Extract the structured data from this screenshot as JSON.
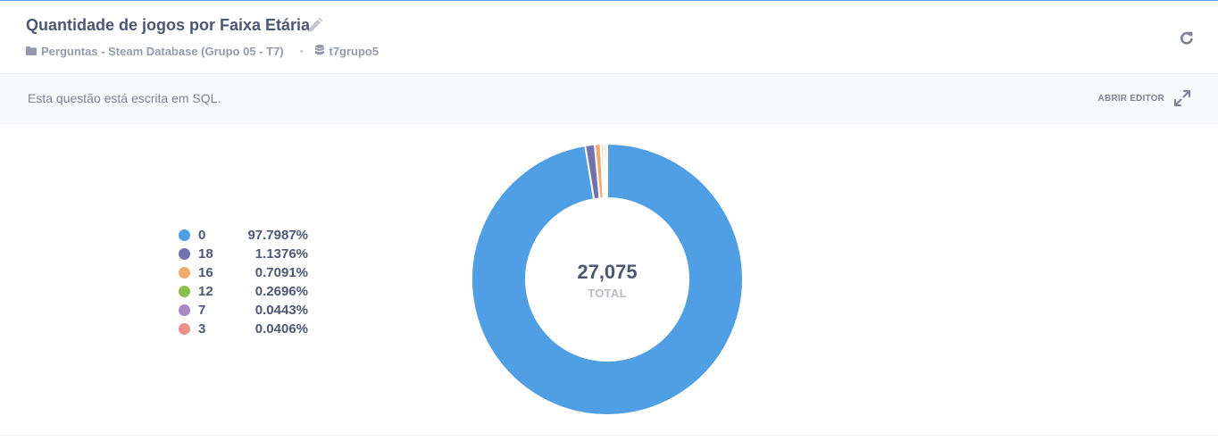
{
  "header": {
    "title": "Quantidade de jogos por Faixa Etária",
    "collection": "Perguntas - Steam Database (Grupo 05 - T7)",
    "separator": "•",
    "database": "t7grupo5"
  },
  "sql_bar": {
    "text": "Esta questão está escrita em SQL.",
    "open_editor_label": "ABRIR EDITOR"
  },
  "icons": {
    "edit": "pencil-icon",
    "collection": "folder-icon",
    "database": "database-icon",
    "refresh": "refresh-icon",
    "expand": "expand-icon"
  },
  "chart_data": {
    "type": "pie",
    "categories": [
      "0",
      "18",
      "16",
      "12",
      "7",
      "3"
    ],
    "values": [
      97.7987,
      1.1376,
      0.7091,
      0.2696,
      0.0443,
      0.0406
    ],
    "percent_labels": [
      "97.7987%",
      "1.1376%",
      "0.7091%",
      "0.2696%",
      "0.0443%",
      "0.0406%"
    ],
    "colors": [
      "#509ee3",
      "#7172ad",
      "#f2a86f",
      "#88bf4d",
      "#a989c5",
      "#ef8c8c"
    ],
    "total_value": "27,075",
    "total_label": "TOTAL",
    "donut": true,
    "legend_position": "left"
  }
}
